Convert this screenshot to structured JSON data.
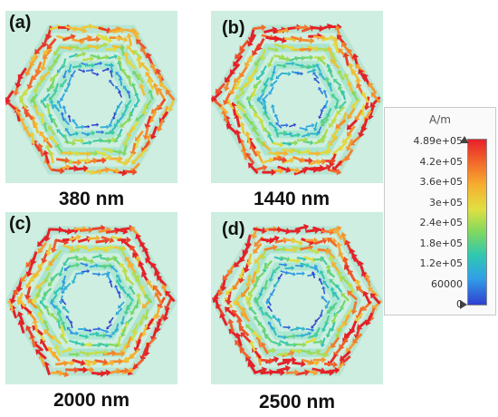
{
  "panels": [
    {
      "label": "(a)",
      "caption": "380 nm",
      "intensity": 0.55
    },
    {
      "label": "(b)",
      "caption": "1440 nm",
      "intensity": 0.8
    },
    {
      "label": "(c)",
      "caption": "2000 nm",
      "intensity": 0.85
    },
    {
      "label": "(d)",
      "caption": "2500 nm",
      "intensity": 0.85
    }
  ],
  "legend": {
    "unit": "A/m",
    "ticks": [
      "4.89e+05",
      "4.2e+05",
      "3.6e+05",
      "3e+05",
      "2.4e+05",
      "1.8e+05",
      "1.2e+05",
      "60000",
      "0"
    ]
  },
  "colors": {
    "panel_background": "#cdeee0",
    "high_field": "#e8202a",
    "low_field": "#3040d0"
  }
}
